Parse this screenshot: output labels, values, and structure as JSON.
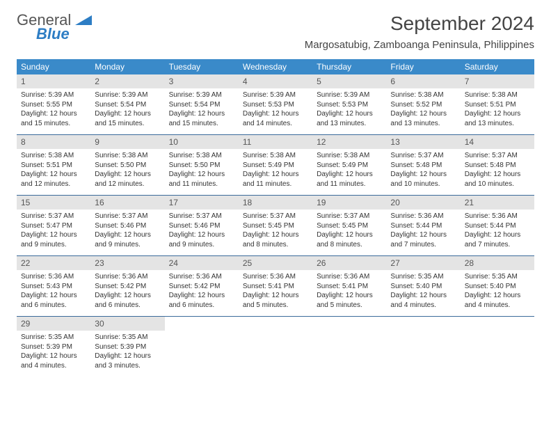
{
  "logo": {
    "text1": "General",
    "text2": "Blue"
  },
  "title": "September 2024",
  "location": "Margosatubig, Zamboanga Peninsula, Philippines",
  "colors": {
    "header_bg": "#3a8ac9",
    "header_text": "#ffffff",
    "daynum_bg": "#e4e4e4",
    "border": "#3a6a9a",
    "logo_blue": "#2d7dc4"
  },
  "day_names": [
    "Sunday",
    "Monday",
    "Tuesday",
    "Wednesday",
    "Thursday",
    "Friday",
    "Saturday"
  ],
  "weeks": [
    [
      {
        "n": "1",
        "sr": "5:39 AM",
        "ss": "5:55 PM",
        "dl": "12 hours and 15 minutes."
      },
      {
        "n": "2",
        "sr": "5:39 AM",
        "ss": "5:54 PM",
        "dl": "12 hours and 15 minutes."
      },
      {
        "n": "3",
        "sr": "5:39 AM",
        "ss": "5:54 PM",
        "dl": "12 hours and 15 minutes."
      },
      {
        "n": "4",
        "sr": "5:39 AM",
        "ss": "5:53 PM",
        "dl": "12 hours and 14 minutes."
      },
      {
        "n": "5",
        "sr": "5:39 AM",
        "ss": "5:53 PM",
        "dl": "12 hours and 13 minutes."
      },
      {
        "n": "6",
        "sr": "5:38 AM",
        "ss": "5:52 PM",
        "dl": "12 hours and 13 minutes."
      },
      {
        "n": "7",
        "sr": "5:38 AM",
        "ss": "5:51 PM",
        "dl": "12 hours and 13 minutes."
      }
    ],
    [
      {
        "n": "8",
        "sr": "5:38 AM",
        "ss": "5:51 PM",
        "dl": "12 hours and 12 minutes."
      },
      {
        "n": "9",
        "sr": "5:38 AM",
        "ss": "5:50 PM",
        "dl": "12 hours and 12 minutes."
      },
      {
        "n": "10",
        "sr": "5:38 AM",
        "ss": "5:50 PM",
        "dl": "12 hours and 11 minutes."
      },
      {
        "n": "11",
        "sr": "5:38 AM",
        "ss": "5:49 PM",
        "dl": "12 hours and 11 minutes."
      },
      {
        "n": "12",
        "sr": "5:38 AM",
        "ss": "5:49 PM",
        "dl": "12 hours and 11 minutes."
      },
      {
        "n": "13",
        "sr": "5:37 AM",
        "ss": "5:48 PM",
        "dl": "12 hours and 10 minutes."
      },
      {
        "n": "14",
        "sr": "5:37 AM",
        "ss": "5:48 PM",
        "dl": "12 hours and 10 minutes."
      }
    ],
    [
      {
        "n": "15",
        "sr": "5:37 AM",
        "ss": "5:47 PM",
        "dl": "12 hours and 9 minutes."
      },
      {
        "n": "16",
        "sr": "5:37 AM",
        "ss": "5:46 PM",
        "dl": "12 hours and 9 minutes."
      },
      {
        "n": "17",
        "sr": "5:37 AM",
        "ss": "5:46 PM",
        "dl": "12 hours and 9 minutes."
      },
      {
        "n": "18",
        "sr": "5:37 AM",
        "ss": "5:45 PM",
        "dl": "12 hours and 8 minutes."
      },
      {
        "n": "19",
        "sr": "5:37 AM",
        "ss": "5:45 PM",
        "dl": "12 hours and 8 minutes."
      },
      {
        "n": "20",
        "sr": "5:36 AM",
        "ss": "5:44 PM",
        "dl": "12 hours and 7 minutes."
      },
      {
        "n": "21",
        "sr": "5:36 AM",
        "ss": "5:44 PM",
        "dl": "12 hours and 7 minutes."
      }
    ],
    [
      {
        "n": "22",
        "sr": "5:36 AM",
        "ss": "5:43 PM",
        "dl": "12 hours and 6 minutes."
      },
      {
        "n": "23",
        "sr": "5:36 AM",
        "ss": "5:42 PM",
        "dl": "12 hours and 6 minutes."
      },
      {
        "n": "24",
        "sr": "5:36 AM",
        "ss": "5:42 PM",
        "dl": "12 hours and 6 minutes."
      },
      {
        "n": "25",
        "sr": "5:36 AM",
        "ss": "5:41 PM",
        "dl": "12 hours and 5 minutes."
      },
      {
        "n": "26",
        "sr": "5:36 AM",
        "ss": "5:41 PM",
        "dl": "12 hours and 5 minutes."
      },
      {
        "n": "27",
        "sr": "5:35 AM",
        "ss": "5:40 PM",
        "dl": "12 hours and 4 minutes."
      },
      {
        "n": "28",
        "sr": "5:35 AM",
        "ss": "5:40 PM",
        "dl": "12 hours and 4 minutes."
      }
    ],
    [
      {
        "n": "29",
        "sr": "5:35 AM",
        "ss": "5:39 PM",
        "dl": "12 hours and 4 minutes."
      },
      {
        "n": "30",
        "sr": "5:35 AM",
        "ss": "5:39 PM",
        "dl": "12 hours and 3 minutes."
      },
      null,
      null,
      null,
      null,
      null
    ]
  ],
  "labels": {
    "sunrise": "Sunrise:",
    "sunset": "Sunset:",
    "daylight": "Daylight:"
  }
}
